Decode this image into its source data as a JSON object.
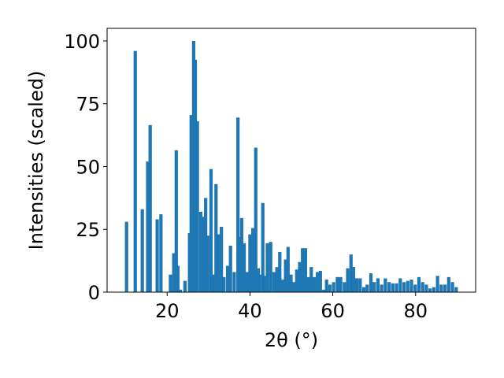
{
  "chart_data": {
    "type": "bar",
    "title": "",
    "xlabel": "2θ (°)",
    "ylabel": "Intensities (scaled)",
    "xlim": [
      5.5,
      94.5
    ],
    "ylim": [
      0,
      105
    ],
    "grid": false,
    "bar_color": "#1f77b4",
    "bar_width": 0.8,
    "x_ticks": [
      20,
      40,
      60,
      80
    ],
    "x_tick_labels": [
      "20",
      "40",
      "60",
      "80"
    ],
    "y_ticks": [
      0,
      25,
      50,
      75,
      100
    ],
    "y_tick_labels": [
      "0",
      "25",
      "50",
      "75",
      "100"
    ],
    "x": [
      10.2,
      12.3,
      14.0,
      15.3,
      15.9,
      17.6,
      18.5,
      20.8,
      21.6,
      22.2,
      22.6,
      23.2,
      24.3,
      25.4,
      25.8,
      26.4,
      26.8,
      27.3,
      28.1,
      28.7,
      29.3,
      29.8,
      30.6,
      31.2,
      31.8,
      32.5,
      33.1,
      33.7,
      34.6,
      35.3,
      36.2,
      37.1,
      37.6,
      38.0,
      38.6,
      39.3,
      40.0,
      40.7,
      41.4,
      42.0,
      42.3,
      43.1,
      43.6,
      44.2,
      45.0,
      45.8,
      46.5,
      47.2,
      47.9,
      48.6,
      49.2,
      49.9,
      50.6,
      51.3,
      52.0,
      52.7,
      53.4,
      54.1,
      54.8,
      55.5,
      56.3,
      57.0,
      57.8,
      58.5,
      59.3,
      60.2,
      61.1,
      61.9,
      62.8,
      63.6,
      64.4,
      65.0,
      65.8,
      66.6,
      67.5,
      68.3,
      69.2,
      70.0,
      70.9,
      71.8,
      72.7,
      73.6,
      74.5,
      75.4,
      76.3,
      77.2,
      78.1,
      79.0,
      79.9,
      80.8,
      81.7,
      82.6,
      83.5,
      84.4,
      85.3,
      86.2,
      87.1,
      88.0,
      88.9,
      89.8
    ],
    "values": [
      28,
      96,
      33,
      52,
      66.5,
      29,
      31,
      7,
      15.5,
      56.5,
      10.5,
      1,
      4.5,
      23.5,
      70.5,
      100,
      92.5,
      68,
      32,
      30,
      37.5,
      22.5,
      49,
      7,
      43,
      23,
      26,
      6,
      10.5,
      18.5,
      8,
      69.5,
      22,
      29.5,
      19.5,
      8,
      23,
      25.5,
      57.5,
      9.5,
      7,
      35.5,
      6.5,
      19.5,
      20,
      8,
      10,
      16,
      5,
      13,
      18,
      7,
      4,
      9,
      12,
      17.5,
      17.5,
      6,
      10,
      6,
      8,
      8.5,
      1,
      5,
      3,
      4,
      6,
      6,
      4,
      9.5,
      15,
      10,
      5.5,
      5.5,
      2,
      3,
      7.5,
      4,
      5.5,
      3,
      5.5,
      4,
      3.5,
      3.5,
      5.5,
      4,
      4.5,
      5,
      3,
      6,
      4,
      3,
      1.5,
      2,
      6.5,
      3,
      3,
      6,
      4,
      2
    ]
  }
}
